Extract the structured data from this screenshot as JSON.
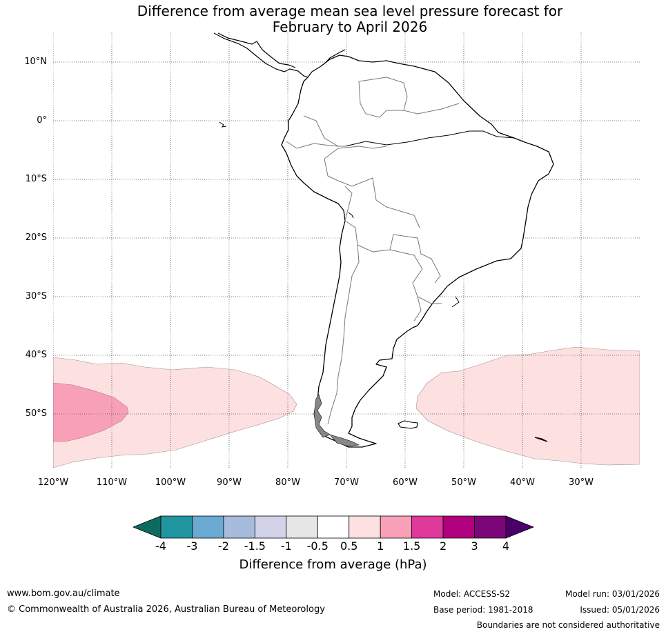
{
  "title": {
    "line1": "Difference from average mean sea level pressure forecast for",
    "line2": "February to April 2026"
  },
  "map": {
    "latitude_labels": [
      "10°N",
      "0°",
      "10°S",
      "20°S",
      "30°S",
      "40°S",
      "50°S"
    ],
    "longitude_labels": [
      "120°W",
      "110°W",
      "100°W",
      "90°W",
      "80°W",
      "70°W",
      "60°W",
      "50°W",
      "40°W",
      "30°W"
    ],
    "anomaly_regions": [
      {
        "name": "southeast-pacific",
        "category": "0.5 to 1"
      },
      {
        "name": "southeast-pacific-core",
        "category": "1 to 1.5"
      },
      {
        "name": "southwest-atlantic",
        "category": "0.5 to 1"
      }
    ]
  },
  "colorbar": {
    "title": "Difference from average (hPa)",
    "ticks": [
      "-4",
      "-3",
      "-2",
      "-1.5",
      "-1",
      "-0.5",
      "0.5",
      "1",
      "1.5",
      "2",
      "3",
      "4"
    ],
    "colors": [
      "#0c6b5e",
      "#2195a0",
      "#6aaad2",
      "#a7bbdd",
      "#d2d2e8",
      "#e6e6e6",
      "#ffffff",
      "#fde0e0",
      "#f9a0b9",
      "#e0399c",
      "#b0007e",
      "#7b0679",
      "#4b0069"
    ]
  },
  "footer": {
    "url": "www.bom.gov.au/climate",
    "copyright": "© Commonwealth of Australia 2026, Australian Bureau of Meteorology",
    "model": "Model: ACCESS-S2",
    "base_period": "Base period: 1981-2018",
    "model_run": "Model run: 03/01/2026",
    "issued": "Issued: 05/01/2026",
    "disclaimer": "Boundaries are not considered authoritative"
  }
}
